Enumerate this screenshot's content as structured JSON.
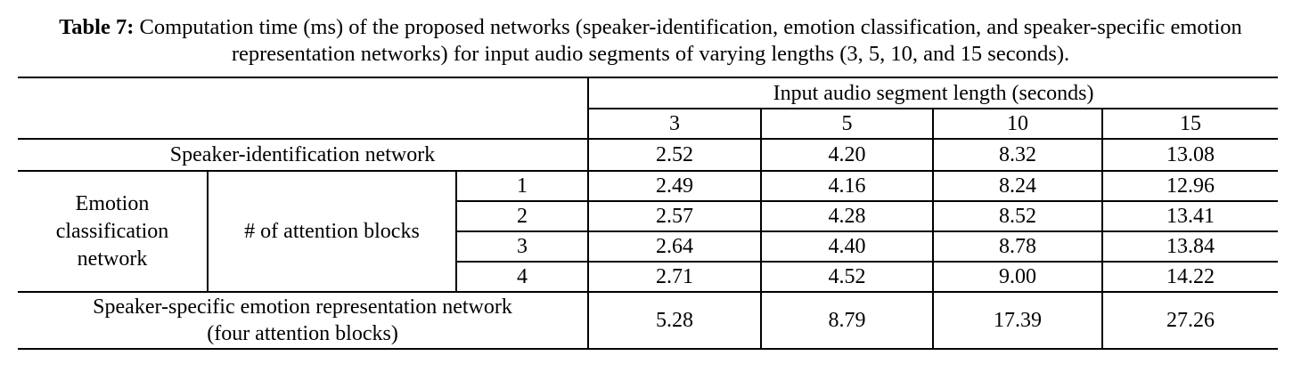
{
  "caption": {
    "label": "Table 7:",
    "text": " Computation time (ms) of the proposed networks (speaker-identification, emotion classification, and speaker-specific emotion representation networks) for input audio segments of varying lengths (3, 5, 10, and 15 seconds)."
  },
  "table": {
    "group_header": "Input audio segment length (seconds)",
    "columns": [
      "3",
      "5",
      "10",
      "15"
    ],
    "speaker_id": {
      "label": "Speaker-identification network",
      "values": [
        "2.52",
        "4.20",
        "8.32",
        "13.08"
      ]
    },
    "emotion": {
      "label": "Emotion classification network",
      "sublabel": "# of attention blocks",
      "rows": [
        {
          "blocks": "1",
          "values": [
            "2.49",
            "4.16",
            "8.24",
            "12.96"
          ]
        },
        {
          "blocks": "2",
          "values": [
            "2.57",
            "4.28",
            "8.52",
            "13.41"
          ]
        },
        {
          "blocks": "3",
          "values": [
            "2.64",
            "4.40",
            "8.78",
            "13.84"
          ]
        },
        {
          "blocks": "4",
          "values": [
            "2.71",
            "4.52",
            "9.00",
            "14.22"
          ]
        }
      ]
    },
    "representation": {
      "label_line1": "Speaker-specific emotion representation network",
      "label_line2": "(four attention blocks)",
      "values": [
        "5.28",
        "8.79",
        "17.39",
        "27.26"
      ]
    }
  }
}
